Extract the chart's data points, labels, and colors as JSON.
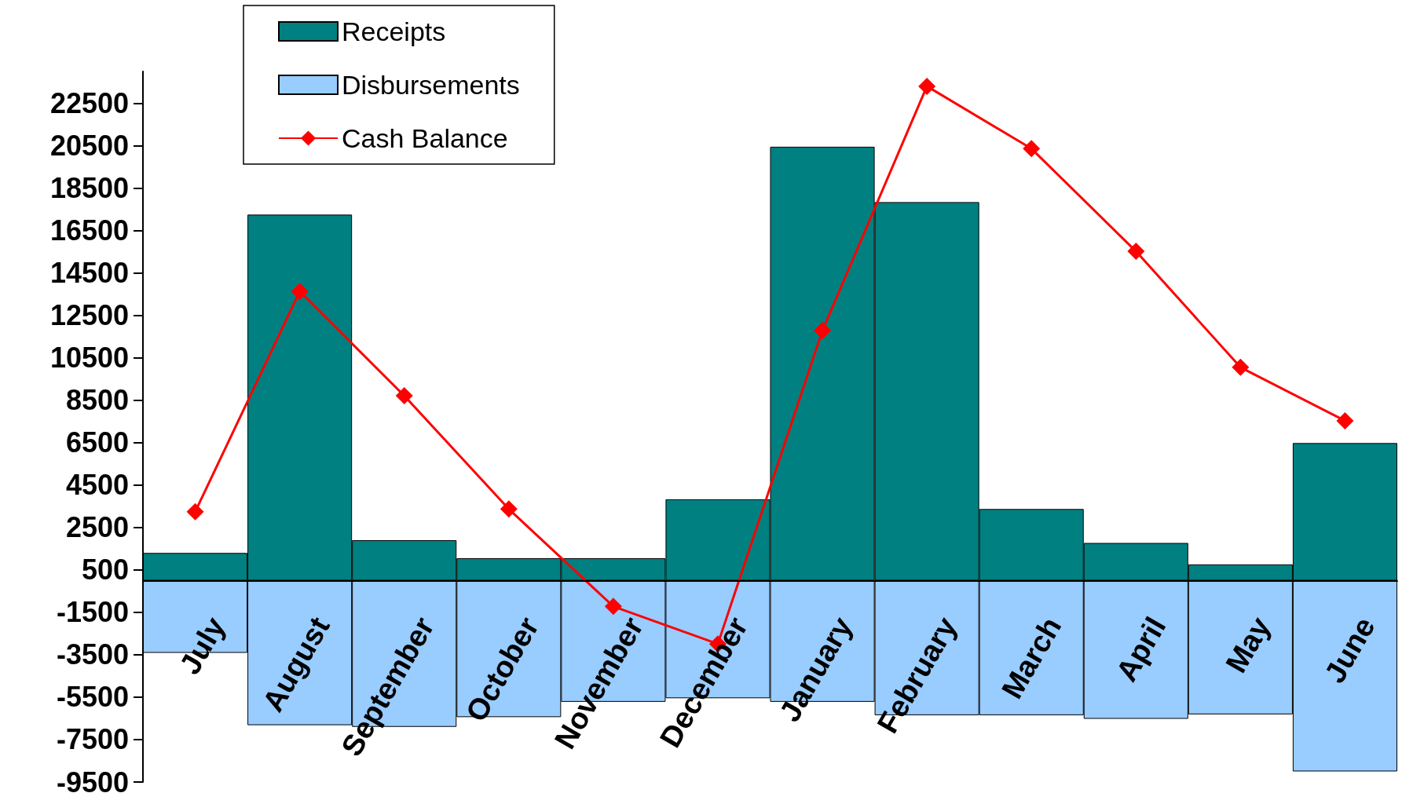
{
  "chart_data": {
    "type": "bar",
    "categories": [
      "July",
      "August",
      "September",
      "October",
      "November",
      "December",
      "January",
      "February",
      "March",
      "April",
      "May",
      "June"
    ],
    "series": [
      {
        "name": "Receipts",
        "color": "#008080",
        "values": [
          1300,
          17250,
          1900,
          1050,
          1050,
          3830,
          20450,
          17840,
          3370,
          1770,
          760,
          6480
        ]
      },
      {
        "name": "Disbursements",
        "color": "#99ccff",
        "values": [
          -3410,
          -6820,
          -6900,
          -6440,
          -5720,
          -5550,
          -5720,
          -6350,
          -6350,
          -6520,
          -6310,
          -9000
        ]
      },
      {
        "name": "Cash Balance",
        "type": "line",
        "color": "#ff0000",
        "marker": "diamond",
        "values": [
          3240,
          13630,
          8710,
          3370,
          -1220,
          -2990,
          11780,
          23300,
          20360,
          15520,
          10050,
          7530
        ]
      }
    ],
    "ylim": [
      -9500,
      24000
    ],
    "yticks": [
      -9500,
      -7500,
      -5500,
      -3500,
      -1500,
      500,
      2500,
      4500,
      6500,
      8500,
      10500,
      12500,
      14500,
      16500,
      18500,
      20500,
      22500
    ],
    "grid": false,
    "legend": "top left",
    "stacked": true
  }
}
